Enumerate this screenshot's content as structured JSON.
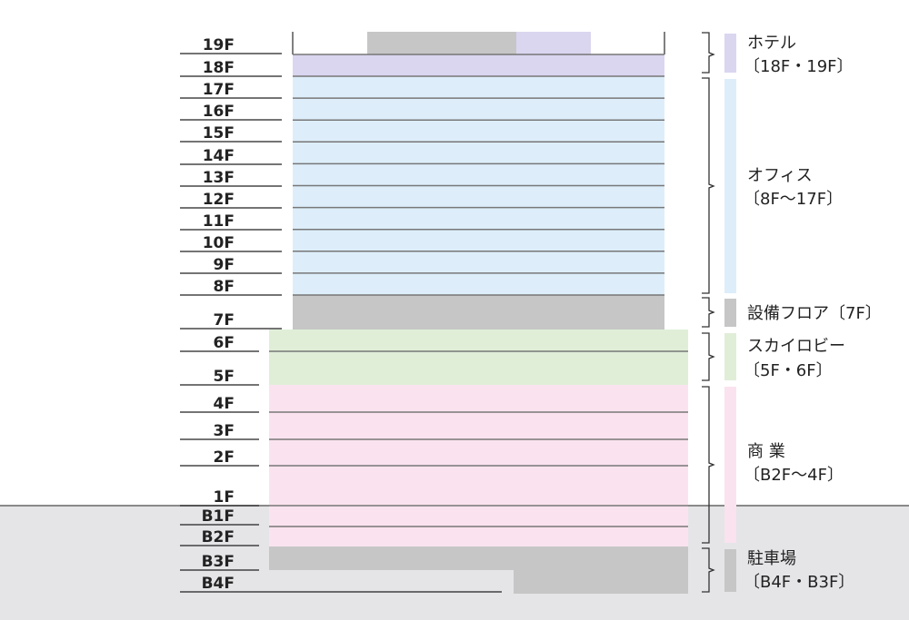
{
  "floors": [
    "19F",
    "18F",
    "17F",
    "16F",
    "15F",
    "14F",
    "13F",
    "12F",
    "11F",
    "10F",
    "9F",
    "8F",
    "7F",
    "6F",
    "5F",
    "4F",
    "3F",
    "2F",
    "1F",
    "B1F",
    "B2F",
    "B3F",
    "B4F"
  ],
  "zones": [
    {
      "name": "ホテル",
      "range": "〔18F・19F〕"
    },
    {
      "name": "オフィス",
      "range": "〔8F〜17F〕"
    },
    {
      "name": "設備フロア〔7F〕"
    },
    {
      "name": "スカイロビー",
      "range": "〔5F・6F〕"
    },
    {
      "name": "商 業",
      "range": "〔B2F〜4F〕"
    },
    {
      "name": "駐車場",
      "range": "〔B4F・B3F〕"
    }
  ]
}
